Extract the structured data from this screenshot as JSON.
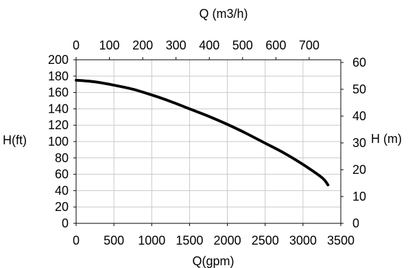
{
  "chart_data": {
    "type": "line",
    "title": "",
    "grid": true,
    "xlabel": "Q(gpm)",
    "ylabel": "H(ft)",
    "x_top_label": "Q (m3/h)",
    "y_right_label": "H (m)",
    "xlim": [
      0,
      3500
    ],
    "ylim": [
      0,
      200
    ],
    "x_top_lim": [
      0,
      795
    ],
    "y_right_lim": [
      0,
      61
    ],
    "x_ticks": [
      0,
      500,
      1000,
      1500,
      2000,
      2500,
      3000,
      3500
    ],
    "y_ticks": [
      0,
      20,
      40,
      60,
      80,
      100,
      120,
      140,
      160,
      180,
      200
    ],
    "x_top_ticks": [
      0,
      100,
      200,
      300,
      400,
      500,
      600,
      700
    ],
    "y_right_ticks": [
      0,
      10,
      20,
      30,
      40,
      50,
      60
    ],
    "series": [
      {
        "name": "",
        "color": "#000000",
        "x": [
          0,
          250,
          500,
          750,
          1000,
          1250,
          1500,
          1750,
          2000,
          2250,
          2500,
          2750,
          3000,
          3250,
          3330
        ],
        "y": [
          175,
          173,
          169,
          164,
          157,
          149,
          140,
          131,
          121,
          110,
          98,
          86,
          72,
          56,
          47
        ]
      }
    ]
  }
}
